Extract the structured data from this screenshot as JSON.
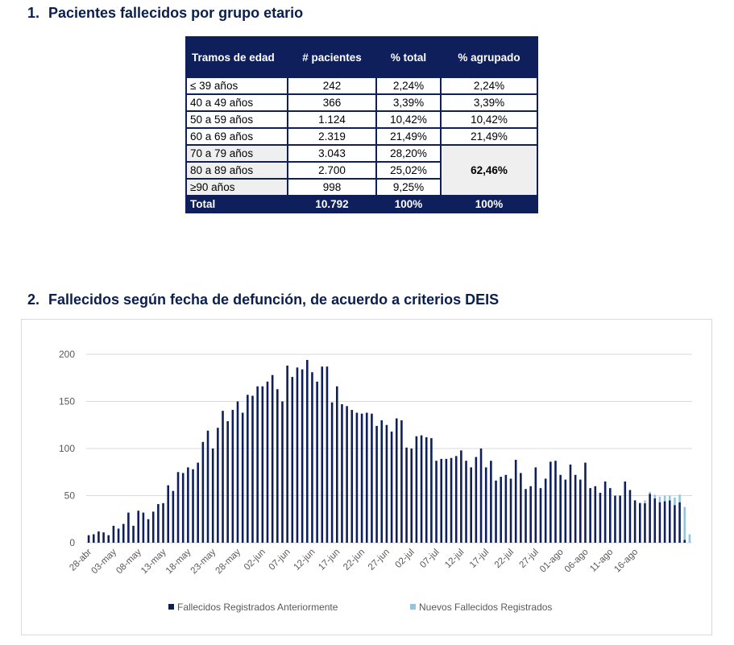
{
  "section1": {
    "number": "1.",
    "title": "Pacientes fallecidos por grupo etario"
  },
  "table": {
    "headers": [
      "Tramos de edad",
      "# pacientes",
      "% total",
      "% agrupado"
    ],
    "rows": [
      {
        "age": "≤ 39 años",
        "patients": "242",
        "pct": "2,24%",
        "grouped": "2,24%"
      },
      {
        "age": "40 a 49 años",
        "patients": "366",
        "pct": "3,39%",
        "grouped": "3,39%"
      },
      {
        "age": "50 a 59 años",
        "patients": "1.124",
        "pct": "10,42%",
        "grouped": "10,42%"
      },
      {
        "age": "60 a 69 años",
        "patients": "2.319",
        "pct": "21,49%",
        "grouped": "21,49%"
      },
      {
        "age": "70 a 79 años",
        "patients": "3.043",
        "pct": "28,20%"
      },
      {
        "age": "80 a 89 años",
        "patients": "2.700",
        "pct": "25,02%"
      },
      {
        "age": "≥90 años",
        "patients": "998",
        "pct": "9,25%"
      }
    ],
    "grouped_70_plus": "62,46%",
    "total": {
      "label": "Total",
      "patients": "10.792",
      "pct": "100%",
      "grouped": "100%"
    }
  },
  "section2": {
    "number": "2.",
    "title": "Fallecidos según fecha de defunción, de acuerdo a criterios DEIS"
  },
  "chart_data": {
    "type": "bar",
    "stacked": true,
    "x_start": "28-abr",
    "tick_labels": [
      "28-abr",
      "03-may",
      "08-may",
      "13-may",
      "18-may",
      "23-may",
      "28-may",
      "02-jun",
      "07-jun",
      "12-jun",
      "17-jun",
      "22-jun",
      "27-jun",
      "02-jul",
      "07-jul",
      "12-jul",
      "17-jul",
      "22-jul",
      "27-jul",
      "01-ago",
      "06-ago",
      "11-ago",
      "16-ago"
    ],
    "ylim": [
      0,
      200
    ],
    "yticks": [
      0,
      50,
      100,
      150,
      200
    ],
    "grid": true,
    "legend_position": "bottom",
    "series": [
      {
        "name": "Fallecidos Registrados Anteriormente",
        "color": "#0e1f5b",
        "values": [
          8,
          9,
          12,
          11,
          8,
          18,
          15,
          20,
          32,
          18,
          34,
          32,
          25,
          33,
          41,
          42,
          61,
          55,
          75,
          74,
          80,
          78,
          85,
          107,
          119,
          100,
          122,
          140,
          129,
          141,
          150,
          138,
          157,
          156,
          166,
          166,
          171,
          178,
          163,
          150,
          188,
          176,
          186,
          184,
          194,
          181,
          171,
          187,
          187,
          149,
          166,
          147,
          145,
          141,
          138,
          137,
          138,
          137,
          124,
          130,
          125,
          118,
          132,
          130,
          101,
          100,
          113,
          114,
          112,
          111,
          87,
          89,
          89,
          90,
          92,
          98,
          87,
          80,
          91,
          100,
          80,
          87,
          66,
          70,
          72,
          68,
          88,
          74,
          57,
          60,
          80,
          58,
          68,
          86,
          87,
          72,
          67,
          83,
          72,
          67,
          85,
          58,
          60,
          53,
          65,
          58,
          50,
          50,
          65,
          56,
          45,
          42,
          42,
          52,
          47,
          43,
          44,
          45,
          40,
          43,
          3,
          0
        ],
        "color_name": "dark navy"
      },
      {
        "name": "Nuevos Fallecidos Registrados",
        "color": "#92c5de",
        "values": [
          0,
          0,
          0,
          0,
          0,
          0,
          0,
          0,
          0,
          0,
          0,
          0,
          0,
          0,
          0,
          0,
          0,
          0,
          0,
          0,
          0,
          0,
          0,
          0,
          0,
          0,
          0,
          0,
          0,
          0,
          0,
          0,
          0,
          0,
          0,
          0,
          0,
          0,
          0,
          0,
          0,
          0,
          0,
          0,
          0,
          0,
          0,
          0,
          0,
          0,
          0,
          0,
          0,
          0,
          0,
          0,
          0,
          0,
          0,
          0,
          0,
          0,
          0,
          0,
          0,
          0,
          0,
          0,
          0,
          0,
          0,
          0,
          0,
          0,
          0,
          0,
          0,
          0,
          0,
          0,
          0,
          0,
          0,
          0,
          0,
          0,
          0,
          0,
          0,
          0,
          0,
          0,
          0,
          0,
          0,
          0,
          0,
          0,
          0,
          0,
          0,
          0,
          0,
          0,
          0,
          0,
          0,
          0,
          0,
          0,
          0,
          1,
          3,
          2,
          4,
          6,
          6,
          5,
          8,
          8,
          35,
          9
        ],
        "color_name": "light blue"
      }
    ]
  }
}
